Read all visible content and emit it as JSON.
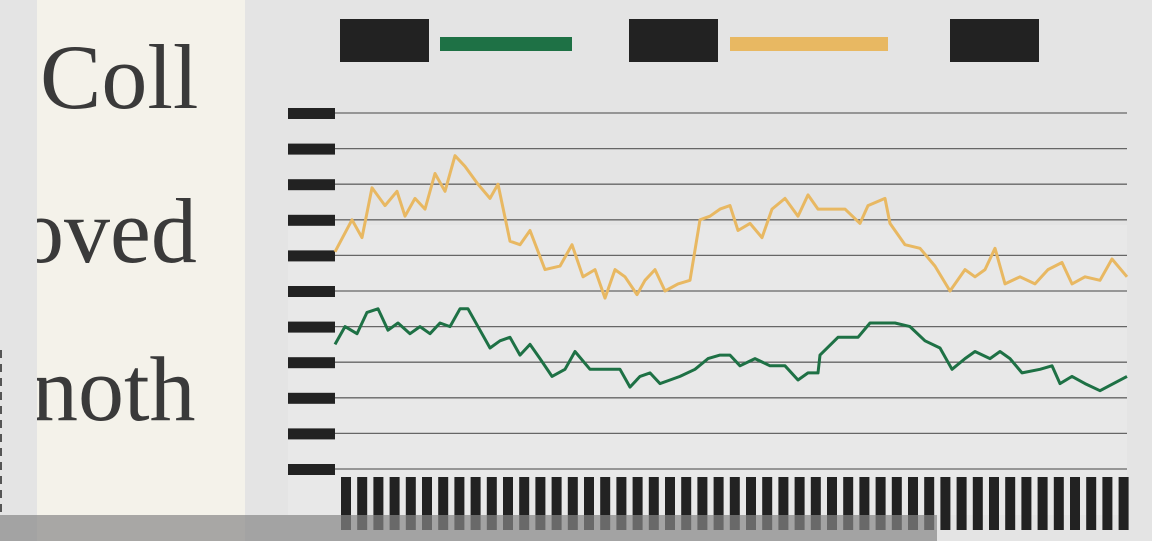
{
  "page_text": [
    "Coll",
    "oved",
    "noth"
  ],
  "chart_data": {
    "type": "line",
    "xlim": [
      0,
      792
    ],
    "ylim": [
      0,
      10
    ],
    "yticks": [
      0,
      1,
      2,
      3,
      4,
      5,
      6,
      7,
      8,
      9,
      10
    ],
    "grid": true,
    "series": [
      {
        "color": "#1e7145",
        "x": [
          0,
          10,
          22,
          32,
          43,
          53,
          63,
          75,
          85,
          95,
          105,
          115,
          125,
          133,
          145,
          155,
          165,
          175,
          185,
          195,
          205,
          217,
          230,
          240,
          255,
          275,
          285,
          295,
          305,
          315,
          325,
          335,
          345,
          360,
          373,
          385,
          395,
          405,
          420,
          435,
          450,
          463,
          473,
          483,
          485,
          503,
          523,
          535,
          550,
          560,
          575,
          590,
          605,
          617,
          630,
          640,
          655,
          665,
          675,
          687,
          705,
          717,
          725,
          737,
          750,
          765,
          792
        ],
        "values": [
          3.5,
          4.0,
          3.8,
          4.4,
          4.5,
          3.9,
          4.1,
          3.8,
          4.0,
          3.8,
          4.1,
          4.0,
          4.5,
          4.5,
          3.9,
          3.4,
          3.6,
          3.7,
          3.2,
          3.5,
          3.1,
          2.6,
          2.8,
          3.3,
          2.8,
          2.8,
          2.8,
          2.3,
          2.6,
          2.7,
          2.4,
          2.5,
          2.6,
          2.8,
          3.1,
          3.2,
          3.2,
          2.9,
          3.1,
          2.9,
          2.9,
          2.5,
          2.7,
          2.7,
          3.2,
          3.7,
          3.7,
          4.1,
          4.1,
          4.1,
          4.0,
          3.6,
          3.4,
          2.8,
          3.1,
          3.3,
          3.1,
          3.3,
          3.1,
          2.7,
          2.8,
          2.9,
          2.4,
          2.6,
          2.4,
          2.2,
          2.6
        ]
      },
      {
        "color": "#e8b862",
        "x": [
          0,
          17,
          27,
          37,
          50,
          62,
          70,
          80,
          90,
          100,
          110,
          120,
          130,
          143,
          155,
          163,
          175,
          185,
          195,
          210,
          225,
          237,
          248,
          260,
          270,
          280,
          290,
          302,
          310,
          320,
          330,
          343,
          355,
          365,
          375,
          385,
          395,
          403,
          415,
          427,
          437,
          450,
          463,
          473,
          483,
          495,
          510,
          525,
          533,
          550,
          555,
          570,
          585,
          600,
          615,
          630,
          640,
          650,
          660,
          670,
          685,
          700,
          713,
          727,
          737,
          750,
          765,
          777,
          792
        ],
        "values": [
          6.1,
          7.0,
          6.5,
          7.9,
          7.4,
          7.8,
          7.1,
          7.6,
          7.3,
          8.3,
          7.8,
          8.8,
          8.5,
          8.0,
          7.6,
          8.0,
          6.4,
          6.3,
          6.7,
          5.6,
          5.7,
          6.3,
          5.4,
          5.6,
          4.8,
          5.6,
          5.4,
          4.9,
          5.3,
          5.6,
          5.0,
          5.2,
          5.3,
          7.0,
          7.1,
          7.3,
          7.4,
          6.7,
          6.9,
          6.5,
          7.3,
          7.6,
          7.1,
          7.7,
          7.3,
          7.3,
          7.3,
          6.9,
          7.4,
          7.6,
          6.9,
          6.3,
          6.2,
          5.7,
          5.0,
          5.6,
          5.4,
          5.6,
          6.2,
          5.2,
          5.4,
          5.2,
          5.6,
          5.8,
          5.2,
          5.4,
          5.3,
          5.9,
          5.4
        ]
      }
    ]
  }
}
